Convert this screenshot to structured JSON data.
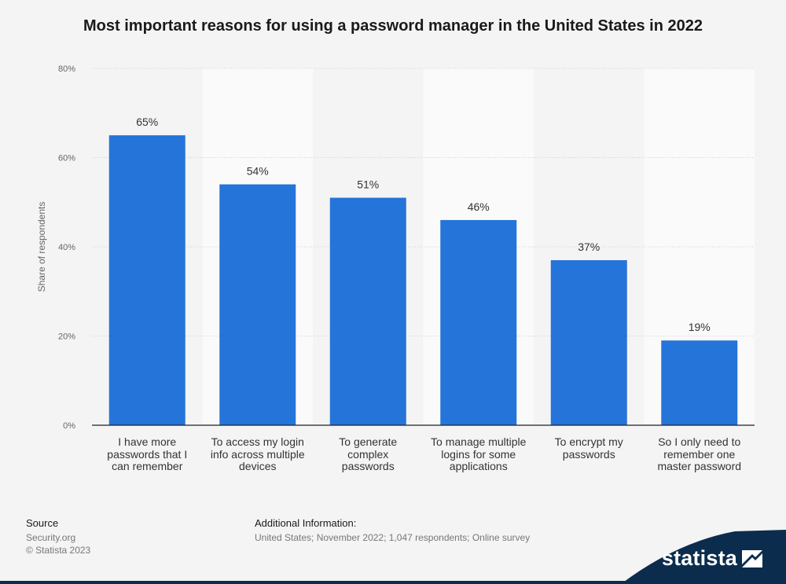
{
  "title": "Most important reasons for using a password manager in the United States in 2022",
  "source": {
    "heading": "Source",
    "lines": [
      "Security.org",
      "© Statista 2023"
    ]
  },
  "additional_info": {
    "heading": "Additional Information:",
    "text": "United States; November 2022; 1,047 respondents; Online survey"
  },
  "brand": {
    "name": "statista",
    "bar_color": "#2574d9",
    "footer_dark": "#0b2c4d"
  },
  "chart_data": {
    "type": "bar",
    "title": "Most important reasons for using a password manager in the United States in 2022",
    "xlabel": "",
    "ylabel": "Share of respondents",
    "ylim": [
      0,
      80
    ],
    "yticks": [
      0,
      20,
      40,
      60,
      80
    ],
    "ytick_labels": [
      "0%",
      "20%",
      "40%",
      "60%",
      "80%"
    ],
    "grid": true,
    "categories": [
      [
        "I have more",
        "passwords that I",
        "can remember"
      ],
      [
        "To access my login",
        "info across multiple",
        "devices"
      ],
      [
        "To generate",
        "complex",
        "passwords"
      ],
      [
        "To manage multiple",
        "logins for some",
        "applications"
      ],
      [
        "To encrypt my",
        "passwords"
      ],
      [
        "So I only need to",
        "remember one",
        "master password"
      ]
    ],
    "values": [
      65,
      54,
      51,
      46,
      37,
      19
    ],
    "value_labels": [
      "65%",
      "54%",
      "51%",
      "46%",
      "37%",
      "19%"
    ]
  }
}
